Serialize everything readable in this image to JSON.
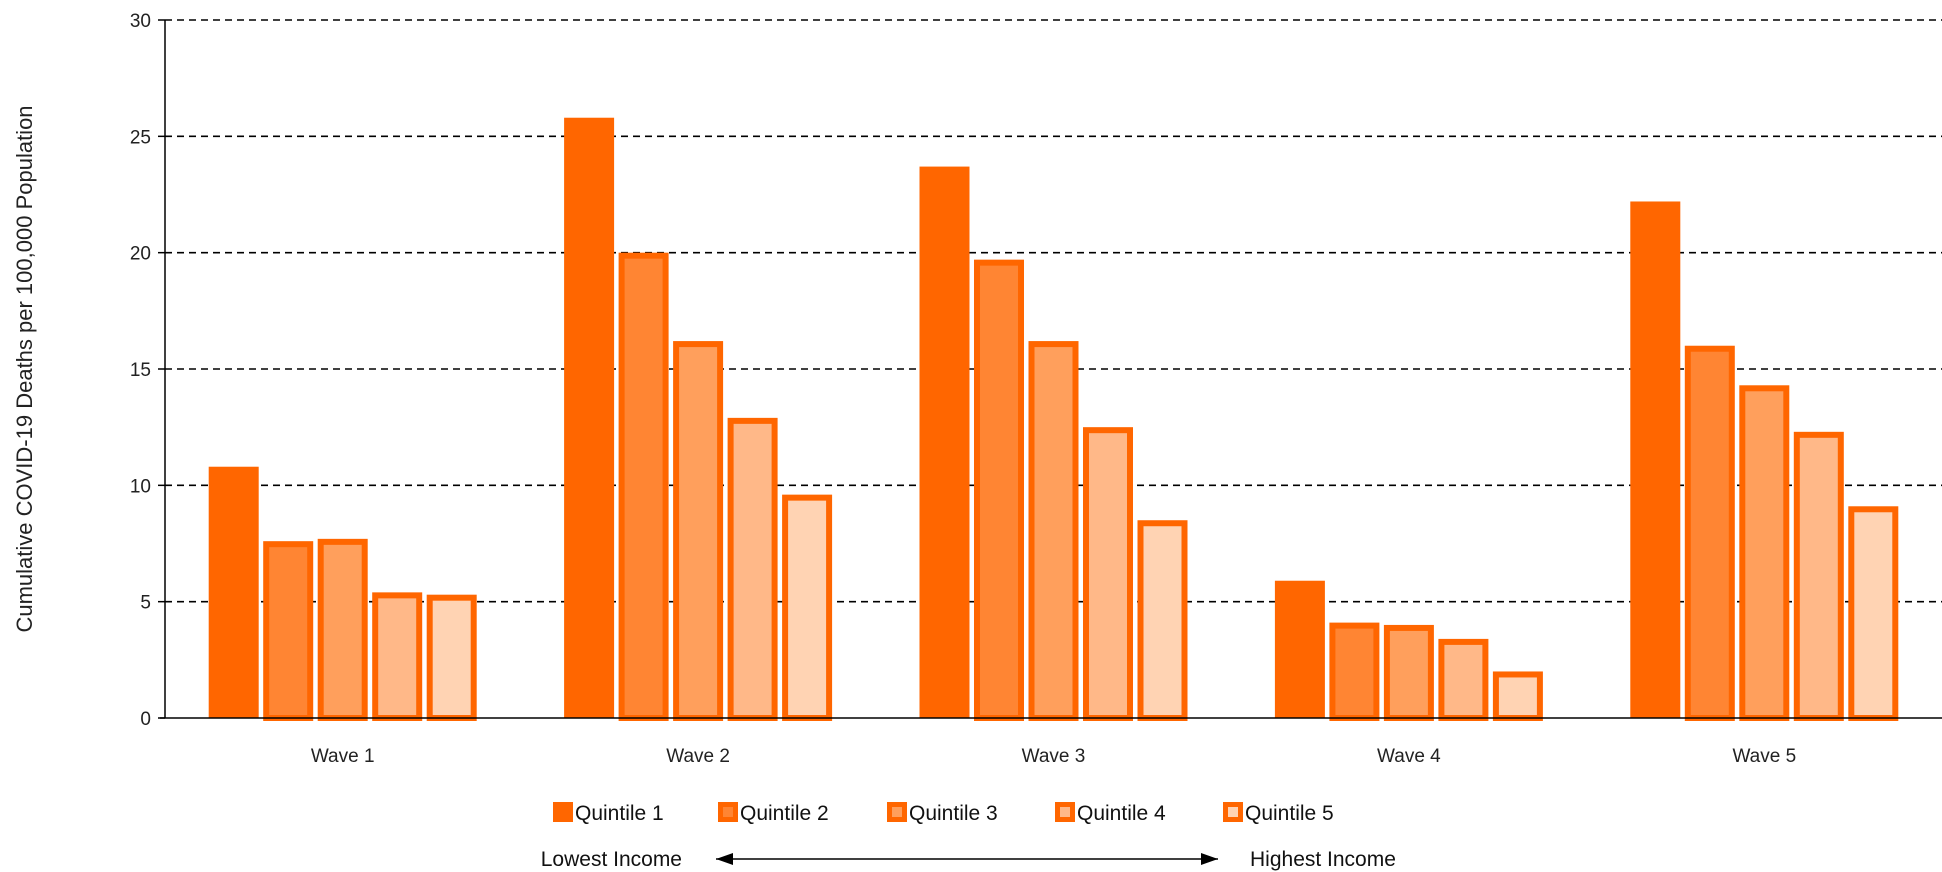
{
  "chart_data": {
    "type": "bar",
    "title": "",
    "xlabel": "",
    "ylabel": "Cumulative COVID-19 Deaths per 100,000 Population",
    "ylim": [
      0,
      30
    ],
    "yticks": [
      0,
      5,
      10,
      15,
      20,
      25,
      30
    ],
    "grid": true,
    "grid_style": "dashed",
    "legend_position": "bottom",
    "categories": [
      "Wave 1",
      "Wave 2",
      "Wave 3",
      "Wave 4",
      "Wave 5"
    ],
    "series": [
      {
        "name": "Quintile 1",
        "values": [
          10.8,
          25.8,
          23.7,
          5.9,
          22.2
        ],
        "color": "#FF6600"
      },
      {
        "name": "Quintile 2",
        "values": [
          7.6,
          20.0,
          19.7,
          4.1,
          16.0
        ],
        "color": "#FF8533"
      },
      {
        "name": "Quintile 3",
        "values": [
          7.7,
          16.2,
          16.2,
          4.0,
          14.3
        ],
        "color": "#FF9F5C"
      },
      {
        "name": "Quintile 4",
        "values": [
          5.4,
          12.9,
          12.5,
          3.4,
          12.3
        ],
        "color": "#FFB888"
      },
      {
        "name": "Quintile 5",
        "values": [
          5.3,
          9.6,
          8.5,
          2.0,
          9.1
        ],
        "color": "#FFD3B3"
      }
    ],
    "border_color": "#FF6600",
    "income_axis": {
      "left_label": "Lowest Income",
      "right_label": "Highest Income"
    }
  }
}
